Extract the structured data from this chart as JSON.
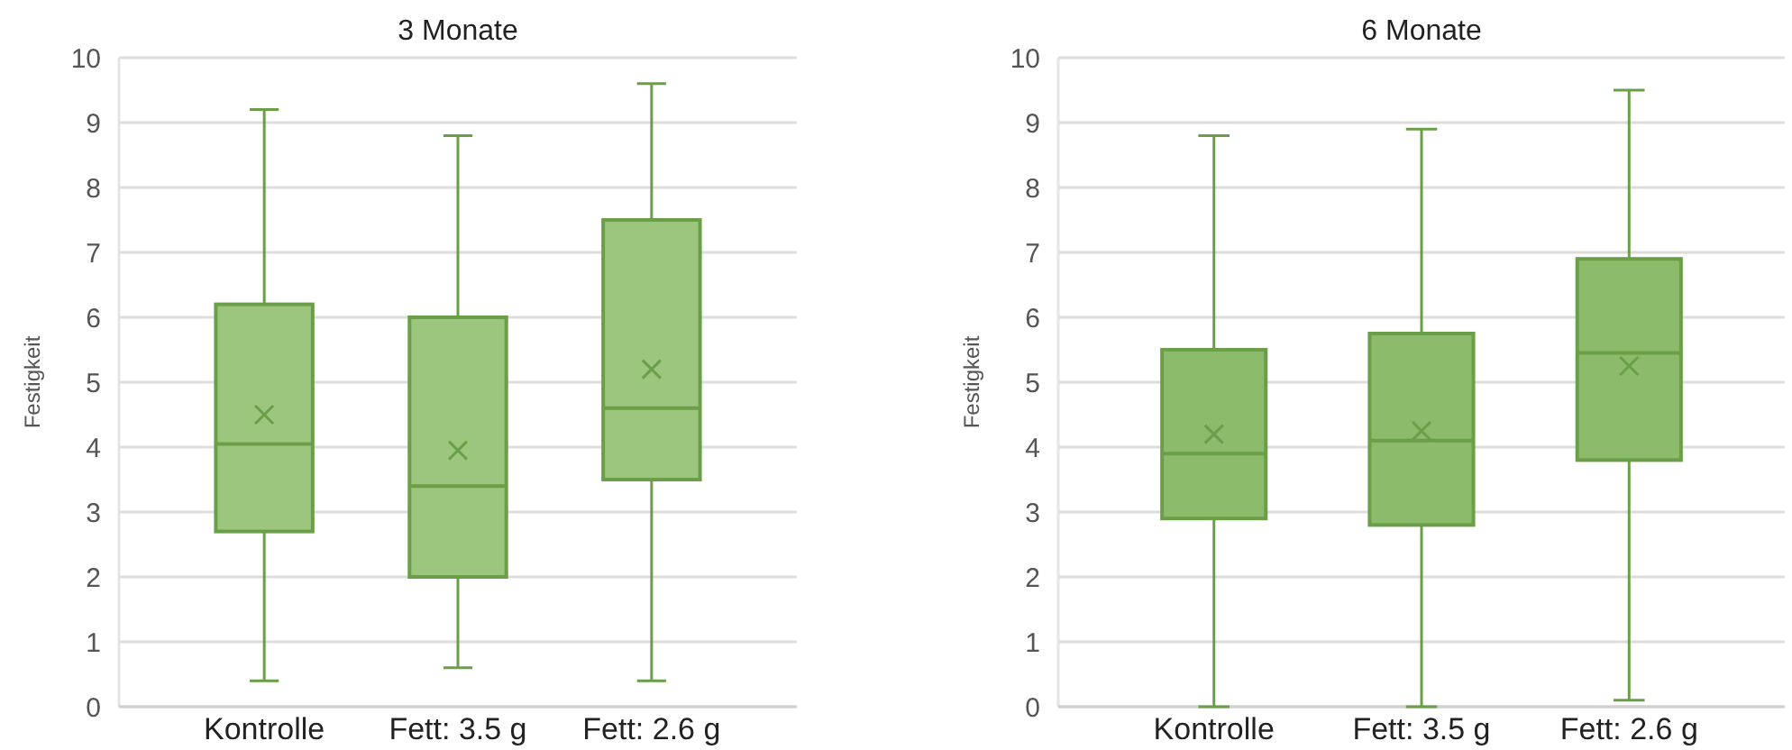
{
  "chart_data": [
    {
      "type": "box",
      "title": "3 Monate",
      "ylabel": "Festigkeit",
      "categories": [
        "Kontrolle",
        "Fett: 3.5 g",
        "Fett: 2.6 g"
      ],
      "color": "#9cc67e",
      "ylim": [
        0,
        10
      ],
      "yticks": [
        0,
        1,
        2,
        3,
        4,
        5,
        6,
        7,
        8,
        9,
        10
      ],
      "grid": "y",
      "boxes": [
        {
          "low": 0.4,
          "q1": 2.7,
          "median": 4.05,
          "q3": 6.2,
          "high": 9.2,
          "mean": 4.5
        },
        {
          "low": 0.6,
          "q1": 2.0,
          "median": 3.4,
          "q3": 6.0,
          "high": 8.8,
          "mean": 3.95
        },
        {
          "low": 0.4,
          "q1": 3.5,
          "median": 4.6,
          "q3": 7.5,
          "high": 9.6,
          "mean": 5.2
        }
      ]
    },
    {
      "type": "box",
      "title": "6 Monate",
      "ylabel": "Festigkeit",
      "categories": [
        "Kontrolle",
        "Fett: 3.5 g",
        "Fett: 2.6 g"
      ],
      "color": "#8cbb6c",
      "ylim": [
        0,
        10
      ],
      "yticks": [
        0,
        1,
        2,
        3,
        4,
        5,
        6,
        7,
        8,
        9,
        10
      ],
      "grid": "y",
      "boxes": [
        {
          "low": 0,
          "q1": 2.9,
          "median": 3.9,
          "q3": 5.5,
          "high": 8.8,
          "mean": 4.2
        },
        {
          "low": 0,
          "q1": 2.8,
          "median": 4.1,
          "q3": 5.75,
          "high": 8.9,
          "mean": 4.25
        },
        {
          "low": 0.1,
          "q1": 3.8,
          "median": 5.45,
          "q3": 6.9,
          "high": 9.5,
          "mean": 5.25
        }
      ]
    }
  ]
}
